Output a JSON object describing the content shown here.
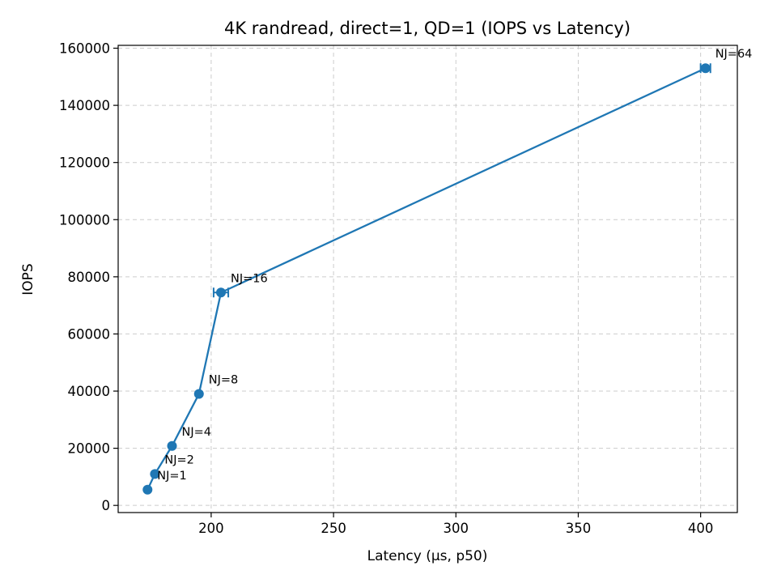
{
  "chart_data": {
    "type": "line",
    "title": "4K randread, direct=1, QD=1 (IOPS vs Latency)",
    "xlabel": "Latency (µs, p50)",
    "ylabel": "IOPS",
    "xlim": [
      162,
      415
    ],
    "ylim": [
      -2500,
      161000
    ],
    "xticks": [
      200,
      250,
      300,
      350,
      400
    ],
    "yticks": [
      0,
      20000,
      40000,
      60000,
      80000,
      100000,
      120000,
      140000,
      160000
    ],
    "grid": true,
    "color": "#1f77b4",
    "series": [
      {
        "x": [
          174,
          177,
          184,
          195,
          204,
          402
        ],
        "y": [
          5500,
          11000,
          20800,
          39000,
          74500,
          153000
        ],
        "xerr": [
          0,
          0,
          0,
          0,
          3,
          2
        ],
        "labels": [
          "NJ=1",
          "NJ=2",
          "NJ=4",
          "NJ=8",
          "NJ=16",
          "NJ=64"
        ]
      }
    ]
  }
}
